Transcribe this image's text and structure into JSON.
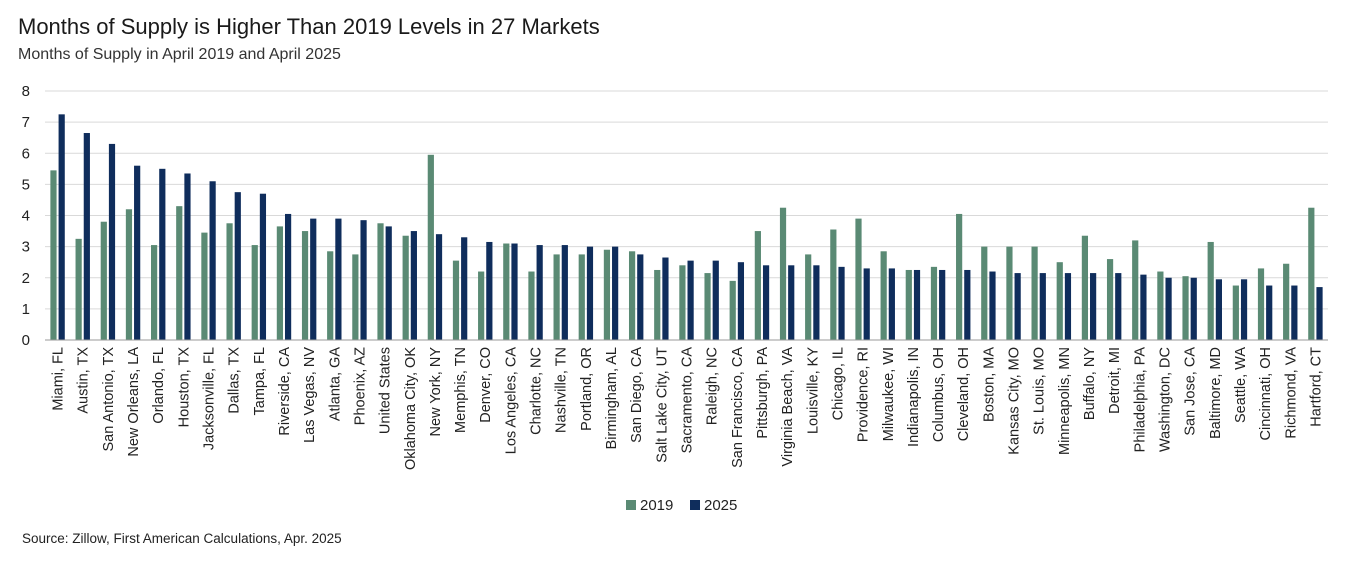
{
  "title": "Months of Supply is Higher Than 2019 Levels in 27 Markets",
  "subtitle": "Months of Supply in April 2019 and April 2025",
  "source": "Source: Zillow, First American Calculations, Apr. 2025",
  "colors": {
    "series_2019": "#5a8a74",
    "series_2025": "#0f2d5c",
    "grid": "#d9d9d9",
    "axis": "#9a9a9a"
  },
  "chart_data": {
    "type": "bar",
    "title": "Months of Supply is Higher Than 2019 Levels in 27 Markets",
    "subtitle": "Months of Supply in April 2019 and April 2025",
    "xlabel": "",
    "ylabel": "",
    "ylim": [
      0,
      8
    ],
    "yticks": [
      0,
      1,
      2,
      3,
      4,
      5,
      6,
      7,
      8
    ],
    "grid": true,
    "legend_position": "bottom",
    "categories": [
      "Miami, FL",
      "Austin, TX",
      "San Antonio, TX",
      "New Orleans, LA",
      "Orlando, FL",
      "Houston, TX",
      "Jacksonville, FL",
      "Dallas, TX",
      "Tampa, FL",
      "Riverside, CA",
      "Las Vegas, NV",
      "Atlanta, GA",
      "Phoenix, AZ",
      "United States",
      "Oklahoma City, OK",
      "New York, NY",
      "Memphis, TN",
      "Denver, CO",
      "Los Angeles, CA",
      "Charlotte, NC",
      "Nashville, TN",
      "Portland, OR",
      "Birmingham, AL",
      "San Diego, CA",
      "Salt Lake City, UT",
      "Sacramento, CA",
      "Raleigh, NC",
      "San Francisco, CA",
      "Pittsburgh, PA",
      "Virginia Beach, VA",
      "Louisville, KY",
      "Chicago, IL",
      "Providence, RI",
      "Milwaukee, WI",
      "Indianapolis, IN",
      "Columbus, OH",
      "Cleveland, OH",
      "Boston, MA",
      "Kansas City, MO",
      "St. Louis, MO",
      "Minneapolis, MN",
      "Buffalo, NY",
      "Detroit, MI",
      "Philadelphia, PA",
      "Washington, DC",
      "San Jose, CA",
      "Baltimore, MD",
      "Seattle, WA",
      "Cincinnati, OH",
      "Richmond, VA",
      "Hartford, CT"
    ],
    "series": [
      {
        "name": "2019",
        "values": [
          5.45,
          3.25,
          3.8,
          4.2,
          3.05,
          4.3,
          3.45,
          3.75,
          3.05,
          3.65,
          3.5,
          2.85,
          2.75,
          3.75,
          3.35,
          5.95,
          2.55,
          2.2,
          3.1,
          2.2,
          2.75,
          2.75,
          2.9,
          2.85,
          2.25,
          2.4,
          2.15,
          1.9,
          3.5,
          4.25,
          2.75,
          3.55,
          3.9,
          2.85,
          2.25,
          2.35,
          4.05,
          3.0,
          3.0,
          3.0,
          2.5,
          3.35,
          2.6,
          3.2,
          2.2,
          2.05,
          3.15,
          1.75,
          2.3,
          2.45,
          4.25
        ]
      },
      {
        "name": "2025",
        "values": [
          7.25,
          6.65,
          6.3,
          5.6,
          5.5,
          5.35,
          5.1,
          4.75,
          4.7,
          4.05,
          3.9,
          3.9,
          3.85,
          3.65,
          3.5,
          3.4,
          3.3,
          3.15,
          3.1,
          3.05,
          3.05,
          3.0,
          3.0,
          2.75,
          2.65,
          2.55,
          2.55,
          2.5,
          2.4,
          2.4,
          2.4,
          2.35,
          2.3,
          2.3,
          2.25,
          2.25,
          2.25,
          2.2,
          2.15,
          2.15,
          2.15,
          2.15,
          2.15,
          2.1,
          2.0,
          2.0,
          1.95,
          1.95,
          1.75,
          1.75,
          1.7
        ]
      }
    ]
  }
}
